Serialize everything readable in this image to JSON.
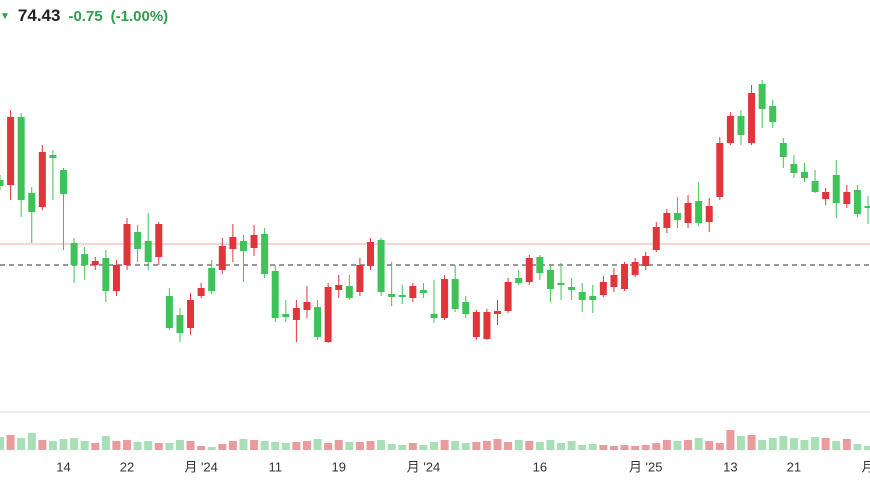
{
  "chart_data": {
    "type": "candlestick",
    "last_price": 74.43,
    "change": -0.75,
    "change_label": "(-1.00%)",
    "up_color": "#e0353b",
    "down_color": "#3fc359",
    "up_volume_color": "#e99b9d",
    "down_volume_color": "#a9dfb4",
    "open": [
      82.0,
      81.5,
      88.3,
      80.7,
      79.3,
      84.5,
      83.0,
      75.7,
      74.6,
      73.5,
      74.2,
      70.9,
      73.5,
      76.8,
      75.9,
      74.3,
      70.4,
      68.5,
      67.2,
      70.4,
      73.2,
      73.0,
      75.1,
      75.9,
      75.2,
      76.6,
      72.9,
      68.6,
      68.0,
      69.0,
      69.3,
      65.8,
      71.0,
      71.4,
      70.8,
      73.4,
      76.0,
      70.6,
      70.5,
      70.2,
      71.0,
      68.6,
      68.2,
      72.1,
      69.8,
      66.3,
      66.1,
      68.6,
      68.9,
      72.2,
      71.8,
      74.3,
      73.0,
      71.7,
      71.3,
      70.8,
      70.4,
      70.5,
      71.3,
      71.1,
      72.5,
      73.4,
      75.0,
      77.2,
      78.7,
      77.7,
      79.9,
      77.8,
      80.3,
      85.7,
      88.4,
      85.7,
      91.6,
      89.4,
      85.7,
      83.6,
      82.8,
      81.9,
      80.1,
      82.5,
      79.6,
      81.0,
      79.4
    ],
    "high": [
      82.5,
      89.0,
      88.7,
      81.3,
      85.5,
      85.0,
      83.2,
      76.2,
      75.3,
      74.3,
      75.0,
      74.0,
      78.2,
      77.5,
      78.7,
      77.8,
      71.2,
      69.2,
      70.7,
      71.7,
      74.0,
      76.2,
      77.6,
      76.5,
      77.5,
      77.2,
      73.5,
      70.0,
      70.0,
      71.4,
      70.0,
      71.7,
      72.5,
      72.5,
      74.2,
      76.2,
      76.2,
      73.8,
      71.5,
      71.7,
      71.7,
      72.0,
      72.5,
      73.5,
      70.4,
      69.0,
      69.1,
      70.0,
      72.2,
      73.0,
      74.5,
      74.5,
      73.5,
      73.7,
      72.2,
      71.7,
      71.5,
      72.4,
      73.2,
      73.8,
      74.2,
      74.8,
      77.8,
      79.1,
      80.3,
      80.5,
      81.8,
      80.2,
      86.3,
      88.8,
      89.0,
      91.5,
      92.0,
      90.0,
      86.2,
      84.5,
      83.7,
      83.0,
      81.2,
      84.0,
      81.5,
      81.5,
      80.4
    ],
    "low": [
      81.0,
      80.0,
      78.3,
      75.7,
      79.0,
      80.0,
      75.0,
      71.7,
      72.0,
      73.0,
      69.8,
      70.4,
      73.0,
      73.8,
      73.0,
      73.5,
      67.0,
      65.8,
      66.5,
      70.2,
      70.6,
      72.6,
      73.8,
      71.8,
      74.4,
      72.2,
      67.8,
      67.8,
      65.8,
      68.2,
      66.0,
      65.7,
      70.2,
      70.0,
      70.4,
      73.0,
      70.4,
      69.4,
      69.6,
      69.8,
      70.2,
      67.7,
      68.0,
      68.8,
      68.2,
      66.0,
      66.0,
      67.5,
      68.7,
      71.5,
      71.5,
      72.0,
      69.8,
      70.0,
      70.0,
      68.8,
      68.7,
      70.3,
      70.8,
      70.9,
      72.3,
      73.0,
      74.8,
      76.7,
      77.2,
      77.2,
      77.4,
      76.8,
      80.0,
      85.5,
      85.5,
      85.5,
      87.2,
      87.2,
      83.2,
      82.2,
      81.8,
      80.7,
      79.5,
      78.2,
      79.2,
      78.3,
      77.6
    ],
    "close": [
      81.4,
      88.3,
      80.0,
      78.8,
      84.8,
      84.2,
      80.6,
      73.5,
      73.5,
      73.9,
      70.9,
      73.5,
      77.6,
      75.1,
      73.8,
      77.6,
      67.2,
      66.7,
      70.0,
      71.2,
      70.9,
      75.4,
      76.3,
      74.9,
      76.5,
      72.6,
      68.2,
      68.3,
      69.2,
      69.8,
      66.3,
      71.3,
      71.5,
      70.2,
      73.5,
      75.8,
      70.8,
      70.3,
      70.3,
      71.4,
      70.7,
      68.2,
      72.1,
      69.1,
      68.6,
      68.8,
      68.8,
      68.9,
      71.8,
      71.7,
      74.2,
      72.7,
      71.1,
      71.5,
      71.0,
      70.0,
      70.0,
      71.8,
      72.5,
      73.6,
      73.8,
      74.4,
      77.3,
      78.7,
      78.0,
      79.7,
      77.7,
      79.4,
      85.7,
      88.4,
      86.5,
      90.7,
      89.1,
      87.8,
      84.3,
      82.7,
      82.2,
      80.8,
      80.8,
      79.7,
      80.8,
      78.6,
      79.2
    ],
    "volume": [
      13,
      15,
      12,
      17,
      10,
      9,
      11,
      12,
      9,
      7,
      14,
      9,
      10,
      8,
      9,
      7,
      7,
      10,
      9,
      4,
      3,
      6,
      9,
      11,
      10,
      9,
      8,
      7,
      8,
      9,
      11,
      7,
      10,
      8,
      8,
      9,
      10,
      6,
      5,
      7,
      5,
      8,
      10,
      9,
      7,
      8,
      9,
      11,
      8,
      10,
      9,
      8,
      10,
      7,
      9,
      5,
      6,
      5,
      4,
      5,
      4,
      5,
      7,
      10,
      9,
      10,
      12,
      9,
      7,
      20,
      14,
      15,
      10,
      12,
      14,
      12,
      10,
      13,
      12,
      9,
      11,
      6,
      4
    ],
    "ylim": [
      59,
      100
    ],
    "volume_ylim": [
      0,
      25
    ],
    "xlim": [
      0,
      82
    ],
    "xticks": [
      {
        "value": 6,
        "label": "14"
      },
      {
        "value": 12,
        "label": "22"
      },
      {
        "value": 19,
        "label": "月 '24"
      },
      {
        "value": 26,
        "label": "11"
      },
      {
        "value": 32,
        "label": "19"
      },
      {
        "value": 40,
        "label": "月 '24"
      },
      {
        "value": 51,
        "label": "16"
      },
      {
        "value": 61,
        "label": "月 '25"
      },
      {
        "value": 69,
        "label": "13"
      },
      {
        "value": 75,
        "label": "21"
      },
      {
        "value": 82,
        "label": "月"
      }
    ],
    "lines": [
      {
        "value": 73.5,
        "style": "dashed",
        "color": "#333333"
      },
      {
        "value": 75.6,
        "style": "solid",
        "color": "#f3aaaa"
      }
    ]
  }
}
